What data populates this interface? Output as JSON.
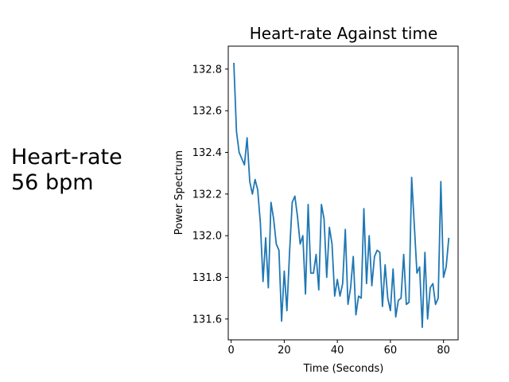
{
  "side_panel": {
    "line1": "Heart-rate",
    "line2": "56 bpm"
  },
  "chart_data": {
    "type": "line",
    "title": "Heart-rate Against time",
    "xlabel": "Time (Seconds)",
    "ylabel": "Power Spectrum",
    "xlim": [
      -1.1,
      85.5
    ],
    "ylim": [
      131.5,
      132.91
    ],
    "xticks": [
      0,
      20,
      40,
      60,
      80
    ],
    "xtick_labels": [
      "0",
      "20",
      "40",
      "60",
      "80"
    ],
    "yticks": [
      131.6,
      131.8,
      132.0,
      132.2,
      132.4,
      132.6,
      132.8
    ],
    "ytick_labels": [
      "131.6",
      "131.8",
      "132.0",
      "132.2",
      "132.4",
      "132.6",
      "132.8"
    ],
    "grid": false,
    "line_color": "#1f77b4",
    "series": [
      {
        "x": [
          1,
          2,
          3,
          4,
          5,
          6,
          7,
          8,
          9,
          10,
          11,
          12,
          13,
          14,
          15,
          16,
          17,
          18,
          19,
          20,
          21,
          22,
          23,
          24,
          25,
          26,
          27,
          28,
          29,
          30,
          31,
          32,
          33,
          34,
          35,
          36,
          37,
          38,
          39,
          40,
          41,
          42,
          43,
          44,
          45,
          46,
          47,
          48,
          49,
          50,
          51,
          52,
          53,
          54,
          55,
          56,
          57,
          58,
          59,
          60,
          61,
          62,
          63,
          64,
          65,
          66,
          67,
          68,
          69,
          70,
          71,
          72,
          73,
          74,
          75,
          76,
          77,
          78,
          79,
          80,
          81,
          82
        ],
        "y": [
          132.83,
          132.5,
          132.4,
          132.37,
          132.34,
          132.47,
          132.26,
          132.2,
          132.27,
          132.22,
          132.06,
          131.78,
          131.99,
          131.75,
          132.16,
          132.08,
          131.96,
          131.93,
          131.59,
          131.83,
          131.64,
          131.92,
          132.16,
          132.19,
          132.09,
          131.96,
          132.0,
          131.72,
          132.15,
          131.82,
          131.82,
          131.91,
          131.74,
          132.15,
          132.08,
          131.8,
          132.04,
          131.96,
          131.71,
          131.79,
          131.71,
          131.77,
          132.03,
          131.67,
          131.75,
          131.9,
          131.62,
          131.71,
          131.7,
          132.13,
          131.77,
          132.0,
          131.76,
          131.9,
          131.93,
          131.92,
          131.66,
          131.86,
          131.7,
          131.64,
          131.84,
          131.61,
          131.69,
          131.7,
          131.91,
          131.67,
          131.68,
          132.28,
          132.05,
          131.82,
          131.85,
          131.56,
          131.92,
          131.6,
          131.75,
          131.77,
          131.67,
          131.7,
          132.26,
          131.8,
          131.85,
          131.99
        ]
      }
    ]
  }
}
